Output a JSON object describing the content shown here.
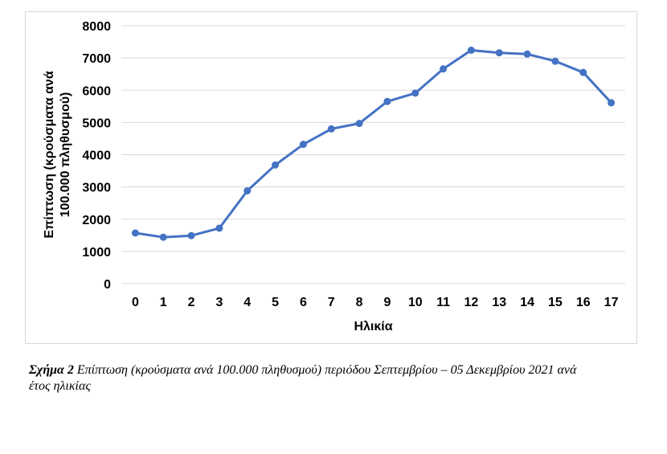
{
  "chart_data": {
    "type": "line",
    "xlabel": "Ηλικία",
    "ylabel_line1": "Επίπτωση (κρούσματα ανά",
    "ylabel_line2": "100.000 πληθυσμού)",
    "categories": [
      "0",
      "1",
      "2",
      "3",
      "4",
      "5",
      "6",
      "7",
      "8",
      "9",
      "10",
      "11",
      "12",
      "13",
      "14",
      "15",
      "16",
      "17"
    ],
    "values": [
      1570,
      1440,
      1490,
      1720,
      2880,
      3680,
      4320,
      4800,
      4970,
      5650,
      5910,
      6660,
      7240,
      7160,
      7120,
      6900,
      6550,
      5610
    ],
    "ylim": [
      0,
      8000
    ],
    "yticks": [
      "0",
      "1000",
      "2000",
      "3000",
      "4000",
      "5000",
      "6000",
      "7000",
      "8000"
    ],
    "grid": true,
    "line_color": "#4472c4",
    "grid_color": "#d9d9d9"
  },
  "caption": {
    "label": "Σχήμα 2",
    "text": " Επίπτωση (κρούσματα ανά 100.000 πληθυσμού) περιόδου Σεπτεμβρίου – 05 Δεκεμβρίου 2021 ανά έτος ηλικίας"
  }
}
